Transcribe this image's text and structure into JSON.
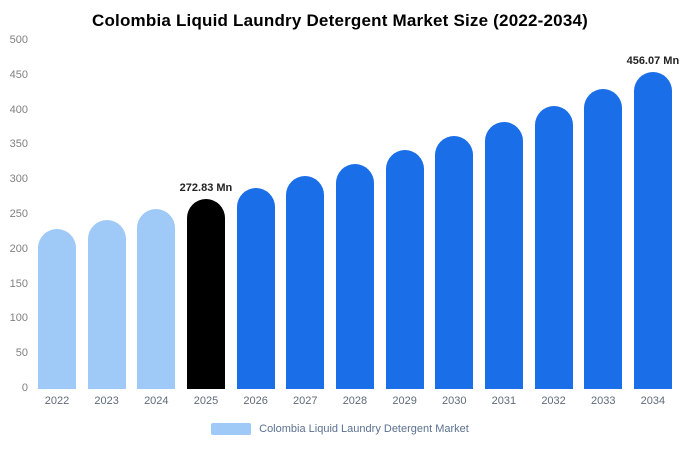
{
  "title": "Colombia Liquid Laundry Detergent Market Size (2022-2034)",
  "colors": {
    "light_blue": "#9fc9f7",
    "primary_blue": "#1a6ee8",
    "highlight_black": "#000000"
  },
  "chart_data": {
    "type": "bar",
    "title": "Colombia Liquid Laundry Detergent Market Size (2022-2034)",
    "xlabel": "",
    "ylabel": "",
    "ylim": [
      0,
      500
    ],
    "yticks": [
      0,
      50,
      100,
      150,
      200,
      250,
      300,
      350,
      400,
      450,
      500
    ],
    "grid": false,
    "legend_position": "bottom",
    "categories": [
      "2022",
      "2023",
      "2024",
      "2025",
      "2026",
      "2027",
      "2028",
      "2029",
      "2030",
      "2031",
      "2032",
      "2033",
      "2034"
    ],
    "values": [
      230,
      243,
      258,
      272.83,
      289,
      306,
      324,
      343,
      363,
      384,
      407,
      431,
      456.07
    ],
    "bar_colors": [
      "#9fc9f7",
      "#9fc9f7",
      "#9fc9f7",
      "#000000",
      "#1a6ee8",
      "#1a6ee8",
      "#1a6ee8",
      "#1a6ee8",
      "#1a6ee8",
      "#1a6ee8",
      "#1a6ee8",
      "#1a6ee8",
      "#1a6ee8"
    ],
    "annotations": [
      {
        "index": 3,
        "text": "272.83 Mn"
      },
      {
        "index": 12,
        "text": "456.07 Mn"
      }
    ],
    "legend": [
      {
        "label": "Colombia Liquid Laundry Detergent Market",
        "color": "#9fc9f7"
      }
    ]
  }
}
